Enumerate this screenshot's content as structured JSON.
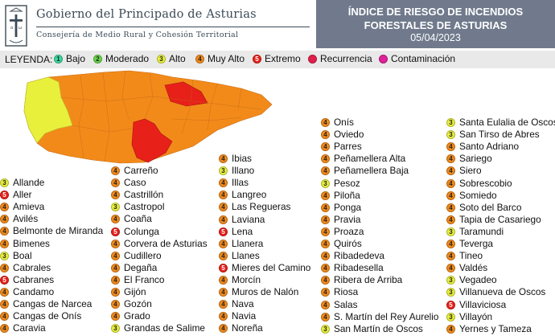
{
  "header": {
    "government": "Gobierno del Principado de Asturias",
    "department": "Consejería de Medio Rural y Cohesión Territorial",
    "index_title_line1": "ÍNDICE DE RIESGO DE INCENDIOS",
    "index_title_line2": "FORESTALES DE ASTURIAS",
    "date": "05/04/2023"
  },
  "legend": {
    "title": "LEYENDA:",
    "items": [
      {
        "level": "1",
        "label": "Bajo",
        "color": "#3cd6a0"
      },
      {
        "level": "2",
        "label": "Moderado",
        "color": "#6ad44a"
      },
      {
        "level": "3",
        "label": "Alto",
        "color": "#e8f03c"
      },
      {
        "level": "4",
        "label": "Muy Alto",
        "color": "#f28a1a"
      },
      {
        "level": "5",
        "label": "Extremo",
        "color": "#e8201a"
      },
      {
        "level": "R",
        "label": "Recurrencia",
        "color": "#e0204a"
      },
      {
        "level": "C",
        "label": "Contaminación",
        "color": "#e0209a"
      }
    ]
  },
  "map": {
    "colors": {
      "alto": "#e8f03c",
      "muy_alto": "#f28a1a",
      "extremo": "#e8201a"
    }
  },
  "columns": [
    [
      {
        "level": "3",
        "name": "Allande"
      },
      {
        "level": "5",
        "name": "Aller"
      },
      {
        "level": "4",
        "name": "Amieva"
      },
      {
        "level": "4",
        "name": "Avilés"
      },
      {
        "level": "4",
        "name": "Belmonte de Miranda"
      },
      {
        "level": "4",
        "name": "Bimenes"
      },
      {
        "level": "3",
        "name": "Boal"
      },
      {
        "level": "4",
        "name": "Cabrales"
      },
      {
        "level": "5",
        "name": "Cabranes"
      },
      {
        "level": "4",
        "name": "Candamo"
      },
      {
        "level": "4",
        "name": "Cangas de Narcea"
      },
      {
        "level": "4",
        "name": "Cangas de Onís"
      },
      {
        "level": "4",
        "name": "Caravia"
      }
    ],
    [
      {
        "level": "4",
        "name": "Carreño"
      },
      {
        "level": "4",
        "name": "Caso"
      },
      {
        "level": "4",
        "name": "Castrillón"
      },
      {
        "level": "3",
        "name": "Castropol"
      },
      {
        "level": "4",
        "name": "Coaña"
      },
      {
        "level": "5",
        "name": "Colunga"
      },
      {
        "level": "4",
        "name": "Corvera de Asturias"
      },
      {
        "level": "4",
        "name": "Cudillero"
      },
      {
        "level": "4",
        "name": "Degaña"
      },
      {
        "level": "4",
        "name": "El Franco"
      },
      {
        "level": "4",
        "name": "Gijón"
      },
      {
        "level": "4",
        "name": "Gozón"
      },
      {
        "level": "4",
        "name": "Grado"
      },
      {
        "level": "3",
        "name": "Grandas de Salime"
      }
    ],
    [
      {
        "level": "4",
        "name": "Ibias"
      },
      {
        "level": "3",
        "name": "Illano"
      },
      {
        "level": "4",
        "name": "Illas"
      },
      {
        "level": "4",
        "name": "Langreo"
      },
      {
        "level": "4",
        "name": "Las Regueras"
      },
      {
        "level": "4",
        "name": "Laviana"
      },
      {
        "level": "5",
        "name": "Lena"
      },
      {
        "level": "4",
        "name": "Llanera"
      },
      {
        "level": "4",
        "name": "Llanes"
      },
      {
        "level": "5",
        "name": "Mieres del Camino"
      },
      {
        "level": "4",
        "name": "Morcín"
      },
      {
        "level": "4",
        "name": "Muros de Nalón"
      },
      {
        "level": "4",
        "name": "Nava"
      },
      {
        "level": "4",
        "name": "Navia"
      },
      {
        "level": "4",
        "name": "Noreña"
      }
    ],
    [
      {
        "level": "4",
        "name": "Onís"
      },
      {
        "level": "4",
        "name": "Oviedo"
      },
      {
        "level": "4",
        "name": "Parres"
      },
      {
        "level": "4",
        "name": "Peñamellera Alta"
      },
      {
        "level": "4",
        "name": "Peñamellera Baja"
      },
      {
        "level": "3",
        "name": "Pesoz"
      },
      {
        "level": "4",
        "name": "Piloña"
      },
      {
        "level": "4",
        "name": "Ponga"
      },
      {
        "level": "4",
        "name": "Pravia"
      },
      {
        "level": "4",
        "name": "Proaza"
      },
      {
        "level": "4",
        "name": "Quirós"
      },
      {
        "level": "4",
        "name": "Ribadedeva"
      },
      {
        "level": "4",
        "name": "Ribadesella"
      },
      {
        "level": "4",
        "name": "Ribera de Arriba"
      },
      {
        "level": "4",
        "name": "Riosa"
      },
      {
        "level": "4",
        "name": "Salas"
      },
      {
        "level": "4",
        "name": "S. Martín del Rey Aurelio"
      },
      {
        "level": "3",
        "name": "San Martín de Oscos"
      }
    ],
    [
      {
        "level": "3",
        "name": "Santa Eulalia de Oscos"
      },
      {
        "level": "3",
        "name": "San Tirso de Abres"
      },
      {
        "level": "4",
        "name": "Santo Adriano"
      },
      {
        "level": "4",
        "name": "Sariego"
      },
      {
        "level": "4",
        "name": "Siero"
      },
      {
        "level": "4",
        "name": "Sobrescobio"
      },
      {
        "level": "4",
        "name": "Somiedo"
      },
      {
        "level": "4",
        "name": "Soto del Barco"
      },
      {
        "level": "4",
        "name": "Tapia de Casariego"
      },
      {
        "level": "3",
        "name": "Taramundi"
      },
      {
        "level": "4",
        "name": "Teverga"
      },
      {
        "level": "4",
        "name": "Tineo"
      },
      {
        "level": "4",
        "name": "Valdés"
      },
      {
        "level": "3",
        "name": "Vegadeo"
      },
      {
        "level": "3",
        "name": "Villanueva de Oscos"
      },
      {
        "level": "5",
        "name": "Villaviciosa"
      },
      {
        "level": "3",
        "name": "Villayón"
      },
      {
        "level": "4",
        "name": "Yernes y Tameza"
      }
    ]
  ]
}
